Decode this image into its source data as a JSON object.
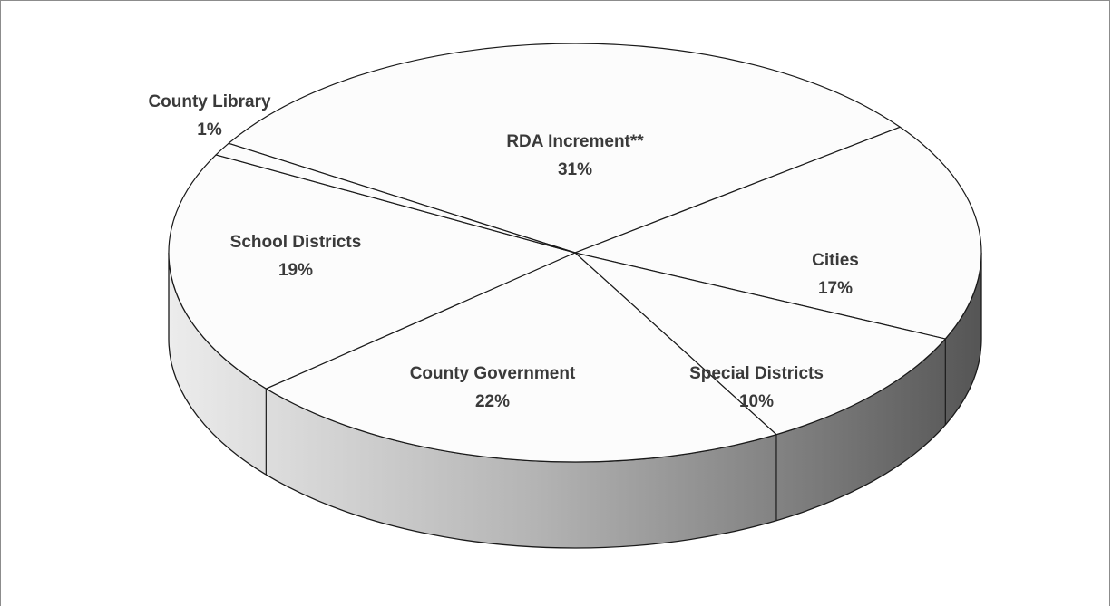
{
  "chart_data": {
    "type": "pie",
    "style": "3d",
    "title": "",
    "legend": "none",
    "slices": [
      {
        "label": "RDA Increment**",
        "value": 31,
        "value_label": "31%"
      },
      {
        "label": "Cities",
        "value": 17,
        "value_label": "17%"
      },
      {
        "label": "Special Districts",
        "value": 10,
        "value_label": "10%"
      },
      {
        "label": "County Government",
        "value": 22,
        "value_label": "22%"
      },
      {
        "label": "School Districts",
        "value": 19,
        "value_label": "19%"
      },
      {
        "label": "County Library",
        "value": 1,
        "value_label": "1%"
      }
    ],
    "colors": {
      "top_fill": "#fcfcfc",
      "outline": "#1a1a1a",
      "side_light": "#ececec",
      "side_dark": "#5a5a5a",
      "label_text": "#3a3a3a"
    }
  }
}
